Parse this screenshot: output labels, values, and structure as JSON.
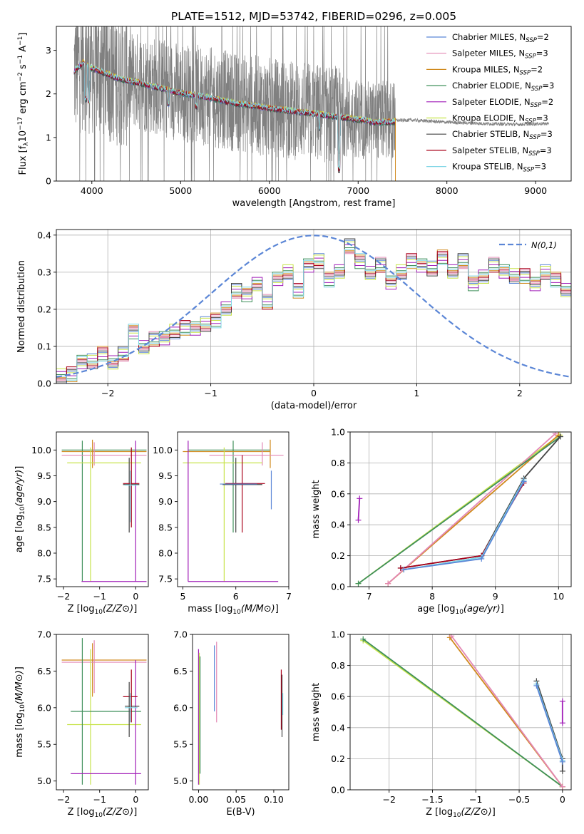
{
  "figure": {
    "title": "PLATE=1512, MJD=53742, FIBERID=0296, z=0.005"
  },
  "legend_entries": [
    {
      "label": "Chabrier MILES, N_SSP=2",
      "text": "Chabrier MILES, N",
      "sub": "SSP",
      "tail": "=2",
      "color": "#5b86d6"
    },
    {
      "label": "Salpeter MILES, N_SSP=3",
      "text": "Salpeter MILES, N",
      "sub": "SSP",
      "tail": "=3",
      "color": "#e387b4"
    },
    {
      "label": "Kroupa MILES, N_SSP=2",
      "text": "Kroupa MILES, N",
      "sub": "SSP",
      "tail": "=2",
      "color": "#d08a1e"
    },
    {
      "label": "Chabrier ELODIE, N_SSP=3",
      "text": "Chabrier ELODIE, N",
      "sub": "SSP",
      "tail": "=3",
      "color": "#3f8f5a"
    },
    {
      "label": "Salpeter ELODIE, N_SSP=2",
      "text": "Salpeter ELODIE, N",
      "sub": "SSP",
      "tail": "=2",
      "color": "#a11fb8"
    },
    {
      "label": "Kroupa ELODIE, N_SSP=3",
      "text": "Kroupa ELODIE, N",
      "sub": "SSP",
      "tail": "=3",
      "color": "#c7e34a"
    },
    {
      "label": "Chabrier STELIB, N_SSP=3",
      "text": "Chabrier STELIB, N",
      "sub": "SSP",
      "tail": "=3",
      "color": "#444444"
    },
    {
      "label": "Salpeter STELIB, N_SSP=3",
      "text": "Salpeter STELIB, N",
      "sub": "SSP",
      "tail": "=3",
      "color": "#a8001a"
    },
    {
      "label": "Kroupa STELIB, N_SSP=3",
      "text": "Kroupa STELIB, N",
      "sub": "SSP",
      "tail": "=3",
      "color": "#7fd6e6"
    }
  ],
  "chart_data": [
    {
      "id": "spectrum",
      "type": "line",
      "xlabel": "wavelength [Angstrom, rest frame]",
      "ylabel": "Flux [f_λ 10^-17 erg cm^-2 s^-1 A^-1]",
      "ylabel_parts": {
        "a": "Flux [f",
        "sub": "λ",
        "b": "10",
        "sup1": "−17",
        "c": " erg cm",
        "sup2": "−2",
        "d": " s",
        "sup3": "−1",
        "e": " A",
        "sup4": "−1",
        "f": "]"
      },
      "xlim": [
        3600,
        9400
      ],
      "ylim": [
        0,
        3.55
      ],
      "xticks": [
        4000,
        5000,
        6000,
        7000,
        8000,
        9000
      ],
      "yticks": [
        0,
        1,
        2,
        3
      ],
      "grid": false,
      "legend": "top-right",
      "data_range": [
        3800,
        9150
      ],
      "continuum": {
        "x": [
          3800,
          3900,
          4000,
          4100,
          4300,
          4500,
          4700,
          5000,
          5300,
          5600,
          6000,
          6400,
          6800,
          7200,
          7600,
          8000,
          8400,
          8800,
          9150
        ],
        "y": [
          2.55,
          2.75,
          2.62,
          2.55,
          2.38,
          2.3,
          2.2,
          2.05,
          1.95,
          1.82,
          1.7,
          1.6,
          1.5,
          1.38,
          1.4,
          1.35,
          1.32,
          1.3,
          1.32
        ]
      },
      "model_end": 7420
    },
    {
      "id": "residuals",
      "type": "step",
      "xlabel": "(data-model)/error",
      "ylabel": "Normed distribution",
      "xlim": [
        -2.5,
        2.5
      ],
      "ylim": [
        0,
        0.415
      ],
      "xticks": [
        -2,
        -1,
        0,
        1,
        2
      ],
      "yticks": [
        0.0,
        0.1,
        0.2,
        0.3,
        0.4
      ],
      "grid": true,
      "legend": "top-right",
      "gaussian_label": "N(0,1)",
      "bin_width": 0.1,
      "bins_start": -2.5,
      "values": [
        0.02,
        0.025,
        0.06,
        0.06,
        0.08,
        0.055,
        0.08,
        0.14,
        0.1,
        0.12,
        0.12,
        0.14,
        0.15,
        0.15,
        0.16,
        0.17,
        0.2,
        0.25,
        0.24,
        0.27,
        0.22,
        0.28,
        0.3,
        0.25,
        0.32,
        0.33,
        0.28,
        0.3,
        0.37,
        0.33,
        0.3,
        0.32,
        0.27,
        0.3,
        0.33,
        0.32,
        0.31,
        0.34,
        0.3,
        0.33,
        0.27,
        0.29,
        0.32,
        0.3,
        0.29,
        0.29,
        0.27,
        0.3,
        0.28,
        0.25,
        0.33,
        0.24,
        0.26,
        0.21,
        0.22,
        0.19,
        0.18,
        0.16,
        0.14,
        0.12,
        0.11,
        0.12,
        0.09,
        0.09,
        0.09,
        0.08,
        0.055,
        0.05,
        0.055,
        0.055,
        0.05,
        0.055,
        0.06,
        0.055,
        0.05
      ]
    },
    {
      "id": "age-vs-Z",
      "type": "errorbar",
      "xlabel": "Z [log10(Z/Z⊙)]",
      "ylabel": "age [log10(age/yr)]",
      "xlim": [
        -2.2,
        0.35
      ],
      "ylim": [
        7.35,
        10.35
      ],
      "xticks": [
        -2,
        -1,
        0
      ],
      "yticks": [
        7.5,
        8.0,
        8.5,
        9.0,
        9.5,
        10.0
      ],
      "grid": false
    },
    {
      "id": "age-vs-mass",
      "type": "errorbar",
      "xlabel": "mass [log10(M/M⊙)]",
      "xlim": [
        4.9,
        7.0
      ],
      "ylim": [
        7.35,
        10.35
      ],
      "xticks": [
        5,
        6,
        7
      ],
      "yticks": [
        7.5,
        8.0,
        8.5,
        9.0,
        9.5,
        10.0
      ],
      "grid": false
    },
    {
      "id": "mass-weight-vs-age",
      "type": "line",
      "xlabel": "age [log10(age/yr)]",
      "ylabel": "mass weight",
      "xlim": [
        6.7,
        10.2
      ],
      "ylim": [
        0,
        1.0
      ],
      "xticks": [
        7,
        8,
        9,
        10
      ],
      "yticks": [
        0.0,
        0.2,
        0.4,
        0.6,
        0.8,
        1.0
      ],
      "grid": true,
      "series": [
        {
          "color": "#a11fb8",
          "x": [
            6.83,
            6.85
          ],
          "y": [
            0.43,
            0.57
          ]
        },
        {
          "color": "#c7e34a",
          "x": [
            6.83,
            10.02
          ],
          "y": [
            0.02,
            0.98
          ]
        },
        {
          "color": "#d08a1e",
          "x": [
            7.3,
            10.0
          ],
          "y": [
            0.02,
            0.98
          ]
        },
        {
          "color": "#e387b4",
          "x": [
            7.3,
            9.95
          ],
          "y": [
            0.02,
            0.99
          ]
        },
        {
          "color": "#3f8f5a",
          "x": [
            6.83,
            10.03
          ],
          "y": [
            0.02,
            0.97
          ]
        },
        {
          "color": "#444444",
          "x": [
            7.5,
            8.78,
            9.45,
            10.03
          ],
          "y": [
            0.12,
            0.2,
            0.7,
            0.97
          ]
        },
        {
          "color": "#a8001a",
          "x": [
            7.5,
            8.78,
            9.45
          ],
          "y": [
            0.12,
            0.2,
            0.67
          ]
        },
        {
          "color": "#7fd6e6",
          "x": [
            7.55,
            8.78,
            9.45
          ],
          "y": [
            0.11,
            0.19,
            0.69
          ]
        },
        {
          "color": "#5b86d6",
          "x": [
            7.55,
            8.78,
            9.45
          ],
          "y": [
            0.11,
            0.18,
            0.68
          ]
        }
      ]
    },
    {
      "id": "mass-vs-Z",
      "type": "errorbar",
      "xlabel": "Z [log10(Z/Z⊙)]",
      "ylabel": "mass [log10(M/M⊙)]",
      "xlim": [
        -2.2,
        0.35
      ],
      "ylim": [
        4.88,
        7.0
      ],
      "xticks": [
        -2,
        -1,
        0
      ],
      "yticks": [
        5.0,
        5.5,
        6.0,
        6.5,
        7.0
      ],
      "grid": false
    },
    {
      "id": "mass-vs-EBV",
      "type": "errorbar",
      "xlabel": "E(B-V)",
      "xlim": [
        -0.008,
        0.12
      ],
      "ylim": [
        4.88,
        7.0
      ],
      "xticks": [
        0.0,
        0.05,
        0.1
      ],
      "xtick_labels": [
        "0.00",
        "0.05",
        "0.10"
      ],
      "yticks": [
        5.0,
        5.5,
        6.0,
        6.5,
        7.0
      ],
      "grid": false
    },
    {
      "id": "mass-weight-vs-Z",
      "type": "line",
      "xlabel": "Z [log10(Z/Z⊙)]",
      "ylabel": "mass weight",
      "xlim": [
        -2.45,
        0.1
      ],
      "ylim": [
        0,
        1.0
      ],
      "xticks": [
        -2.0,
        -1.5,
        -1.0,
        -0.5,
        0.0
      ],
      "yticks": [
        0.0,
        0.2,
        0.4,
        0.6,
        0.8,
        1.0
      ],
      "grid": true,
      "series": [
        {
          "color": "#a11fb8",
          "x": [
            0.0,
            0.0
          ],
          "y": [
            0.43,
            0.57
          ]
        },
        {
          "color": "#c7e34a",
          "x": [
            -2.3,
            0.0
          ],
          "y": [
            0.96,
            0.02
          ]
        },
        {
          "color": "#3f8f5a",
          "x": [
            -2.3,
            0.0
          ],
          "y": [
            0.97,
            0.02
          ]
        },
        {
          "color": "#d08a1e",
          "x": [
            -1.3,
            0.0
          ],
          "y": [
            0.98,
            0.02
          ]
        },
        {
          "color": "#e387b4",
          "x": [
            -1.28,
            0.0
          ],
          "y": [
            0.99,
            0.02
          ]
        },
        {
          "color": "#444444",
          "x": [
            -0.3,
            0.0,
            0.0
          ],
          "y": [
            0.7,
            0.2,
            0.12
          ]
        },
        {
          "color": "#7fd6e6",
          "x": [
            -0.3,
            0.0
          ],
          "y": [
            0.68,
            0.19
          ]
        },
        {
          "color": "#5b86d6",
          "x": [
            -0.3,
            0.0
          ],
          "y": [
            0.67,
            0.18
          ]
        }
      ]
    }
  ]
}
